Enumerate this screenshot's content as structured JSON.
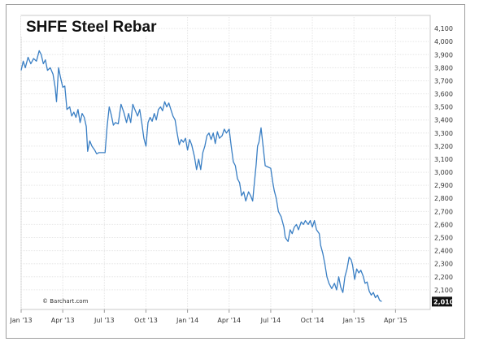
{
  "chart_data": {
    "type": "line",
    "title": "SHFE Steel Rebar",
    "copyright": "© Barchart.com",
    "last_value_label": "2,010",
    "line_color": "#3a7fc4",
    "grid": true,
    "xlim": [
      0,
      29.5
    ],
    "ylim": [
      1950,
      4200
    ],
    "y_ticks": [
      {
        "value": 2100,
        "label": "2,100"
      },
      {
        "value": 2200,
        "label": "2,200"
      },
      {
        "value": 2300,
        "label": "2,300"
      },
      {
        "value": 2400,
        "label": "2,400"
      },
      {
        "value": 2500,
        "label": "2,500"
      },
      {
        "value": 2600,
        "label": "2,600"
      },
      {
        "value": 2700,
        "label": "2,700"
      },
      {
        "value": 2800,
        "label": "2,800"
      },
      {
        "value": 2900,
        "label": "2,900"
      },
      {
        "value": 3000,
        "label": "3,000"
      },
      {
        "value": 3100,
        "label": "3,100"
      },
      {
        "value": 3200,
        "label": "3,200"
      },
      {
        "value": 3300,
        "label": "3,300"
      },
      {
        "value": 3400,
        "label": "3,400"
      },
      {
        "value": 3500,
        "label": "3,500"
      },
      {
        "value": 3600,
        "label": "3,600"
      },
      {
        "value": 3700,
        "label": "3,700"
      },
      {
        "value": 3800,
        "label": "3,800"
      },
      {
        "value": 3900,
        "label": "3,900"
      },
      {
        "value": 4000,
        "label": "4,000"
      },
      {
        "value": 4100,
        "label": "4,100"
      }
    ],
    "x_ticks": [
      {
        "value": 0,
        "label": "Jan '13"
      },
      {
        "value": 3,
        "label": "Apr '13"
      },
      {
        "value": 6,
        "label": "Jul '13"
      },
      {
        "value": 9,
        "label": "Oct '13"
      },
      {
        "value": 12,
        "label": "Jan '14"
      },
      {
        "value": 15,
        "label": "Apr '14"
      },
      {
        "value": 18,
        "label": "Jul '14"
      },
      {
        "value": 21,
        "label": "Oct '14"
      },
      {
        "value": 24,
        "label": "Jan '15"
      },
      {
        "value": 27,
        "label": "Apr '15"
      }
    ],
    "series": [
      {
        "points": [
          [
            0.0,
            3780
          ],
          [
            0.15,
            3850
          ],
          [
            0.3,
            3800
          ],
          [
            0.5,
            3880
          ],
          [
            0.7,
            3830
          ],
          [
            0.9,
            3870
          ],
          [
            1.1,
            3850
          ],
          [
            1.3,
            3930
          ],
          [
            1.45,
            3900
          ],
          [
            1.6,
            3830
          ],
          [
            1.75,
            3860
          ],
          [
            1.9,
            3780
          ],
          [
            2.1,
            3800
          ],
          [
            2.3,
            3750
          ],
          [
            2.45,
            3650
          ],
          [
            2.55,
            3540
          ],
          [
            2.7,
            3800
          ],
          [
            2.85,
            3720
          ],
          [
            3.0,
            3650
          ],
          [
            3.15,
            3660
          ],
          [
            3.3,
            3480
          ],
          [
            3.5,
            3500
          ],
          [
            3.65,
            3430
          ],
          [
            3.8,
            3460
          ],
          [
            3.95,
            3420
          ],
          [
            4.1,
            3480
          ],
          [
            4.25,
            3380
          ],
          [
            4.4,
            3450
          ],
          [
            4.55,
            3420
          ],
          [
            4.7,
            3350
          ],
          [
            4.8,
            3160
          ],
          [
            4.95,
            3240
          ],
          [
            5.1,
            3200
          ],
          [
            5.3,
            3170
          ],
          [
            5.45,
            3140
          ],
          [
            5.6,
            3150
          ],
          [
            6.05,
            3150
          ],
          [
            6.2,
            3350
          ],
          [
            6.35,
            3500
          ],
          [
            6.5,
            3440
          ],
          [
            6.65,
            3360
          ],
          [
            6.8,
            3380
          ],
          [
            7.0,
            3370
          ],
          [
            7.2,
            3520
          ],
          [
            7.4,
            3460
          ],
          [
            7.6,
            3380
          ],
          [
            7.75,
            3450
          ],
          [
            7.9,
            3380
          ],
          [
            8.05,
            3520
          ],
          [
            8.2,
            3480
          ],
          [
            8.4,
            3430
          ],
          [
            8.55,
            3480
          ],
          [
            8.7,
            3380
          ],
          [
            8.85,
            3260
          ],
          [
            9.0,
            3200
          ],
          [
            9.15,
            3380
          ],
          [
            9.3,
            3420
          ],
          [
            9.45,
            3390
          ],
          [
            9.6,
            3450
          ],
          [
            9.75,
            3400
          ],
          [
            9.9,
            3480
          ],
          [
            10.05,
            3500
          ],
          [
            10.2,
            3470
          ],
          [
            10.35,
            3540
          ],
          [
            10.5,
            3500
          ],
          [
            10.65,
            3530
          ],
          [
            10.8,
            3480
          ],
          [
            10.95,
            3430
          ],
          [
            11.1,
            3400
          ],
          [
            11.25,
            3300
          ],
          [
            11.4,
            3210
          ],
          [
            11.55,
            3250
          ],
          [
            11.7,
            3230
          ],
          [
            11.85,
            3260
          ],
          [
            12.0,
            3170
          ],
          [
            12.15,
            3250
          ],
          [
            12.3,
            3210
          ],
          [
            12.5,
            3120
          ],
          [
            12.65,
            3020
          ],
          [
            12.8,
            3100
          ],
          [
            12.95,
            3020
          ],
          [
            13.1,
            3150
          ],
          [
            13.25,
            3200
          ],
          [
            13.4,
            3280
          ],
          [
            13.55,
            3300
          ],
          [
            13.7,
            3250
          ],
          [
            13.85,
            3300
          ],
          [
            14.0,
            3220
          ],
          [
            14.15,
            3310
          ],
          [
            14.3,
            3260
          ],
          [
            14.5,
            3280
          ],
          [
            14.65,
            3330
          ],
          [
            14.8,
            3300
          ],
          [
            15.0,
            3330
          ],
          [
            15.15,
            3200
          ],
          [
            15.3,
            3080
          ],
          [
            15.45,
            3050
          ],
          [
            15.6,
            2950
          ],
          [
            15.75,
            2920
          ],
          [
            15.9,
            2820
          ],
          [
            16.05,
            2850
          ],
          [
            16.2,
            2780
          ],
          [
            16.4,
            2850
          ],
          [
            16.55,
            2820
          ],
          [
            16.7,
            2780
          ],
          [
            16.8,
            2900
          ],
          [
            16.95,
            3060
          ],
          [
            17.05,
            3200
          ],
          [
            17.15,
            3230
          ],
          [
            17.3,
            3340
          ],
          [
            17.45,
            3200
          ],
          [
            17.6,
            3050
          ],
          [
            17.8,
            3040
          ],
          [
            18.0,
            3030
          ],
          [
            18.15,
            2920
          ],
          [
            18.25,
            2860
          ],
          [
            18.4,
            2800
          ],
          [
            18.55,
            2700
          ],
          [
            18.75,
            2660
          ],
          [
            18.95,
            2580
          ],
          [
            19.05,
            2500
          ],
          [
            19.25,
            2470
          ],
          [
            19.4,
            2560
          ],
          [
            19.55,
            2530
          ],
          [
            19.7,
            2580
          ],
          [
            19.85,
            2600
          ],
          [
            20.0,
            2560
          ],
          [
            20.2,
            2620
          ],
          [
            20.35,
            2600
          ],
          [
            20.5,
            2630
          ],
          [
            20.7,
            2600
          ],
          [
            20.85,
            2630
          ],
          [
            21.0,
            2580
          ],
          [
            21.15,
            2630
          ],
          [
            21.3,
            2560
          ],
          [
            21.5,
            2530
          ],
          [
            21.6,
            2440
          ],
          [
            21.75,
            2380
          ],
          [
            21.9,
            2300
          ],
          [
            22.05,
            2200
          ],
          [
            22.2,
            2150
          ],
          [
            22.4,
            2110
          ],
          [
            22.6,
            2150
          ],
          [
            22.75,
            2100
          ],
          [
            22.9,
            2200
          ],
          [
            23.05,
            2120
          ],
          [
            23.2,
            2080
          ],
          [
            23.35,
            2200
          ],
          [
            23.5,
            2260
          ],
          [
            23.65,
            2350
          ],
          [
            23.8,
            2330
          ],
          [
            23.9,
            2290
          ],
          [
            24.05,
            2180
          ],
          [
            24.2,
            2260
          ],
          [
            24.35,
            2230
          ],
          [
            24.5,
            2250
          ],
          [
            24.65,
            2210
          ],
          [
            24.8,
            2150
          ],
          [
            24.95,
            2160
          ],
          [
            25.1,
            2090
          ],
          [
            25.25,
            2060
          ],
          [
            25.4,
            2080
          ],
          [
            25.55,
            2040
          ],
          [
            25.7,
            2060
          ],
          [
            25.85,
            2020
          ],
          [
            26.0,
            2010
          ]
        ]
      }
    ]
  }
}
